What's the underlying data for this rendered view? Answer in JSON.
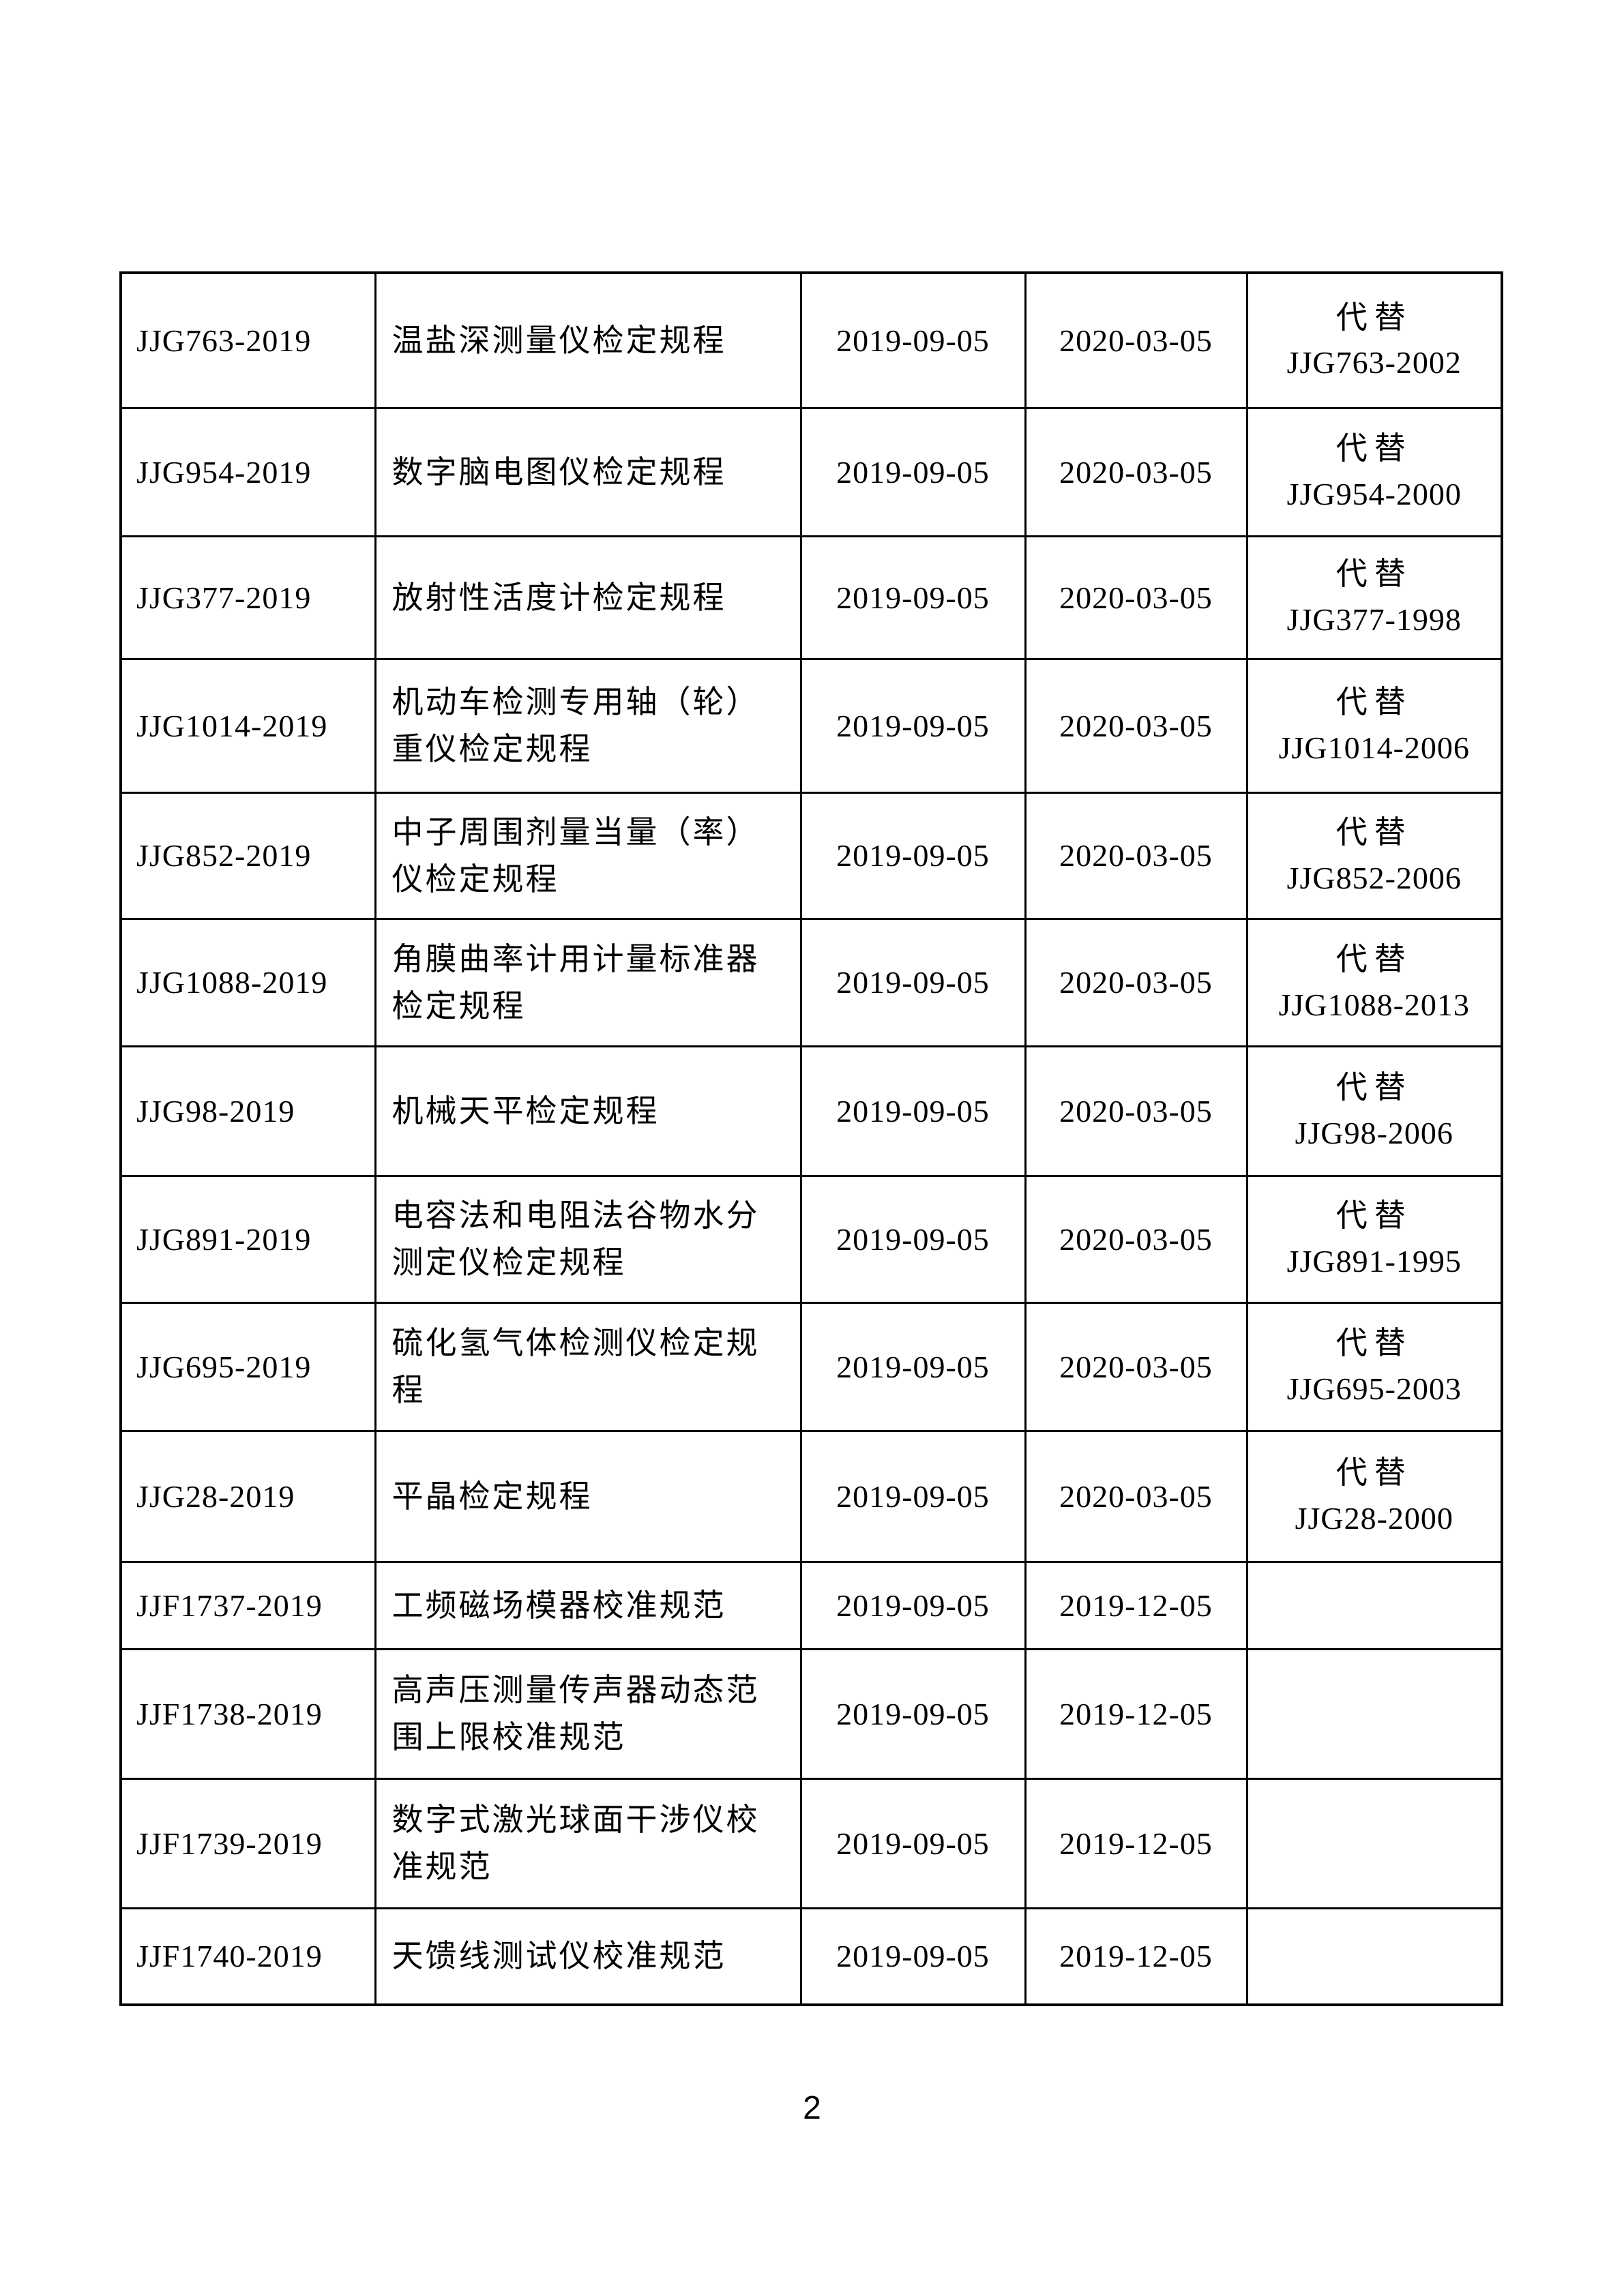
{
  "page": {
    "number": "2"
  },
  "table": {
    "columns": [
      "standard_code",
      "standard_name",
      "release_date",
      "implement_date",
      "replaces"
    ],
    "replace_word": "代替",
    "rows": [
      {
        "code": "JJG763-2019",
        "name": "温盐深测量仪检定规程",
        "release_date": "2019-09-05",
        "implement_date": "2020-03-05",
        "replace_label": "代替",
        "replace_code": "JJG763-2002"
      },
      {
        "code": "JJG954-2019",
        "name": "数字脑电图仪检定规程",
        "release_date": "2019-09-05",
        "implement_date": "2020-03-05",
        "replace_label": "代替",
        "replace_code": "JJG954-2000"
      },
      {
        "code": "JJG377-2019",
        "name": "放射性活度计检定规程",
        "release_date": "2019-09-05",
        "implement_date": "2020-03-05",
        "replace_label": "代替",
        "replace_code": "JJG377-1998"
      },
      {
        "code": "JJG1014-2019",
        "name": "机动车检测专用轴（轮）重仪检定规程",
        "release_date": "2019-09-05",
        "implement_date": "2020-03-05",
        "replace_label": "代替",
        "replace_code": "JJG1014-2006"
      },
      {
        "code": "JJG852-2019",
        "name": "中子周围剂量当量（率）仪检定规程",
        "release_date": "2019-09-05",
        "implement_date": "2020-03-05",
        "replace_label": "代替",
        "replace_code": "JJG852-2006"
      },
      {
        "code": "JJG1088-2019",
        "name": "角膜曲率计用计量标准器检定规程",
        "release_date": "2019-09-05",
        "implement_date": "2020-03-05",
        "replace_label": "代替",
        "replace_code": "JJG1088-2013"
      },
      {
        "code": "JJG98-2019",
        "name": "机械天平检定规程",
        "release_date": "2019-09-05",
        "implement_date": "2020-03-05",
        "replace_label": "代替",
        "replace_code": "JJG98-2006"
      },
      {
        "code": "JJG891-2019",
        "name": "电容法和电阻法谷物水分测定仪检定规程",
        "release_date": "2019-09-05",
        "implement_date": "2020-03-05",
        "replace_label": "代替",
        "replace_code": "JJG891-1995"
      },
      {
        "code": "JJG695-2019",
        "name": "硫化氢气体检测仪检定规程",
        "release_date": "2019-09-05",
        "implement_date": "2020-03-05",
        "replace_label": "代替",
        "replace_code": "JJG695-2003"
      },
      {
        "code": "JJG28-2019",
        "name": "平晶检定规程",
        "release_date": "2019-09-05",
        "implement_date": "2020-03-05",
        "replace_label": "代替",
        "replace_code": "JJG28-2000"
      },
      {
        "code": "JJF1737-2019",
        "name": "工频磁场模器校准规范",
        "release_date": "2019-09-05",
        "implement_date": "2019-12-05",
        "replace_label": "",
        "replace_code": ""
      },
      {
        "code": "JJF1738-2019",
        "name": "高声压测量传声器动态范围上限校准规范",
        "release_date": "2019-09-05",
        "implement_date": "2019-12-05",
        "replace_label": "",
        "replace_code": ""
      },
      {
        "code": "JJF1739-2019",
        "name": "数字式激光球面干涉仪校准规范",
        "release_date": "2019-09-05",
        "implement_date": "2019-12-05",
        "replace_label": "",
        "replace_code": ""
      },
      {
        "code": "JJF1740-2019",
        "name": "天馈线测试仪校准规范",
        "release_date": "2019-09-05",
        "implement_date": "2019-12-05",
        "replace_label": "",
        "replace_code": ""
      }
    ]
  }
}
